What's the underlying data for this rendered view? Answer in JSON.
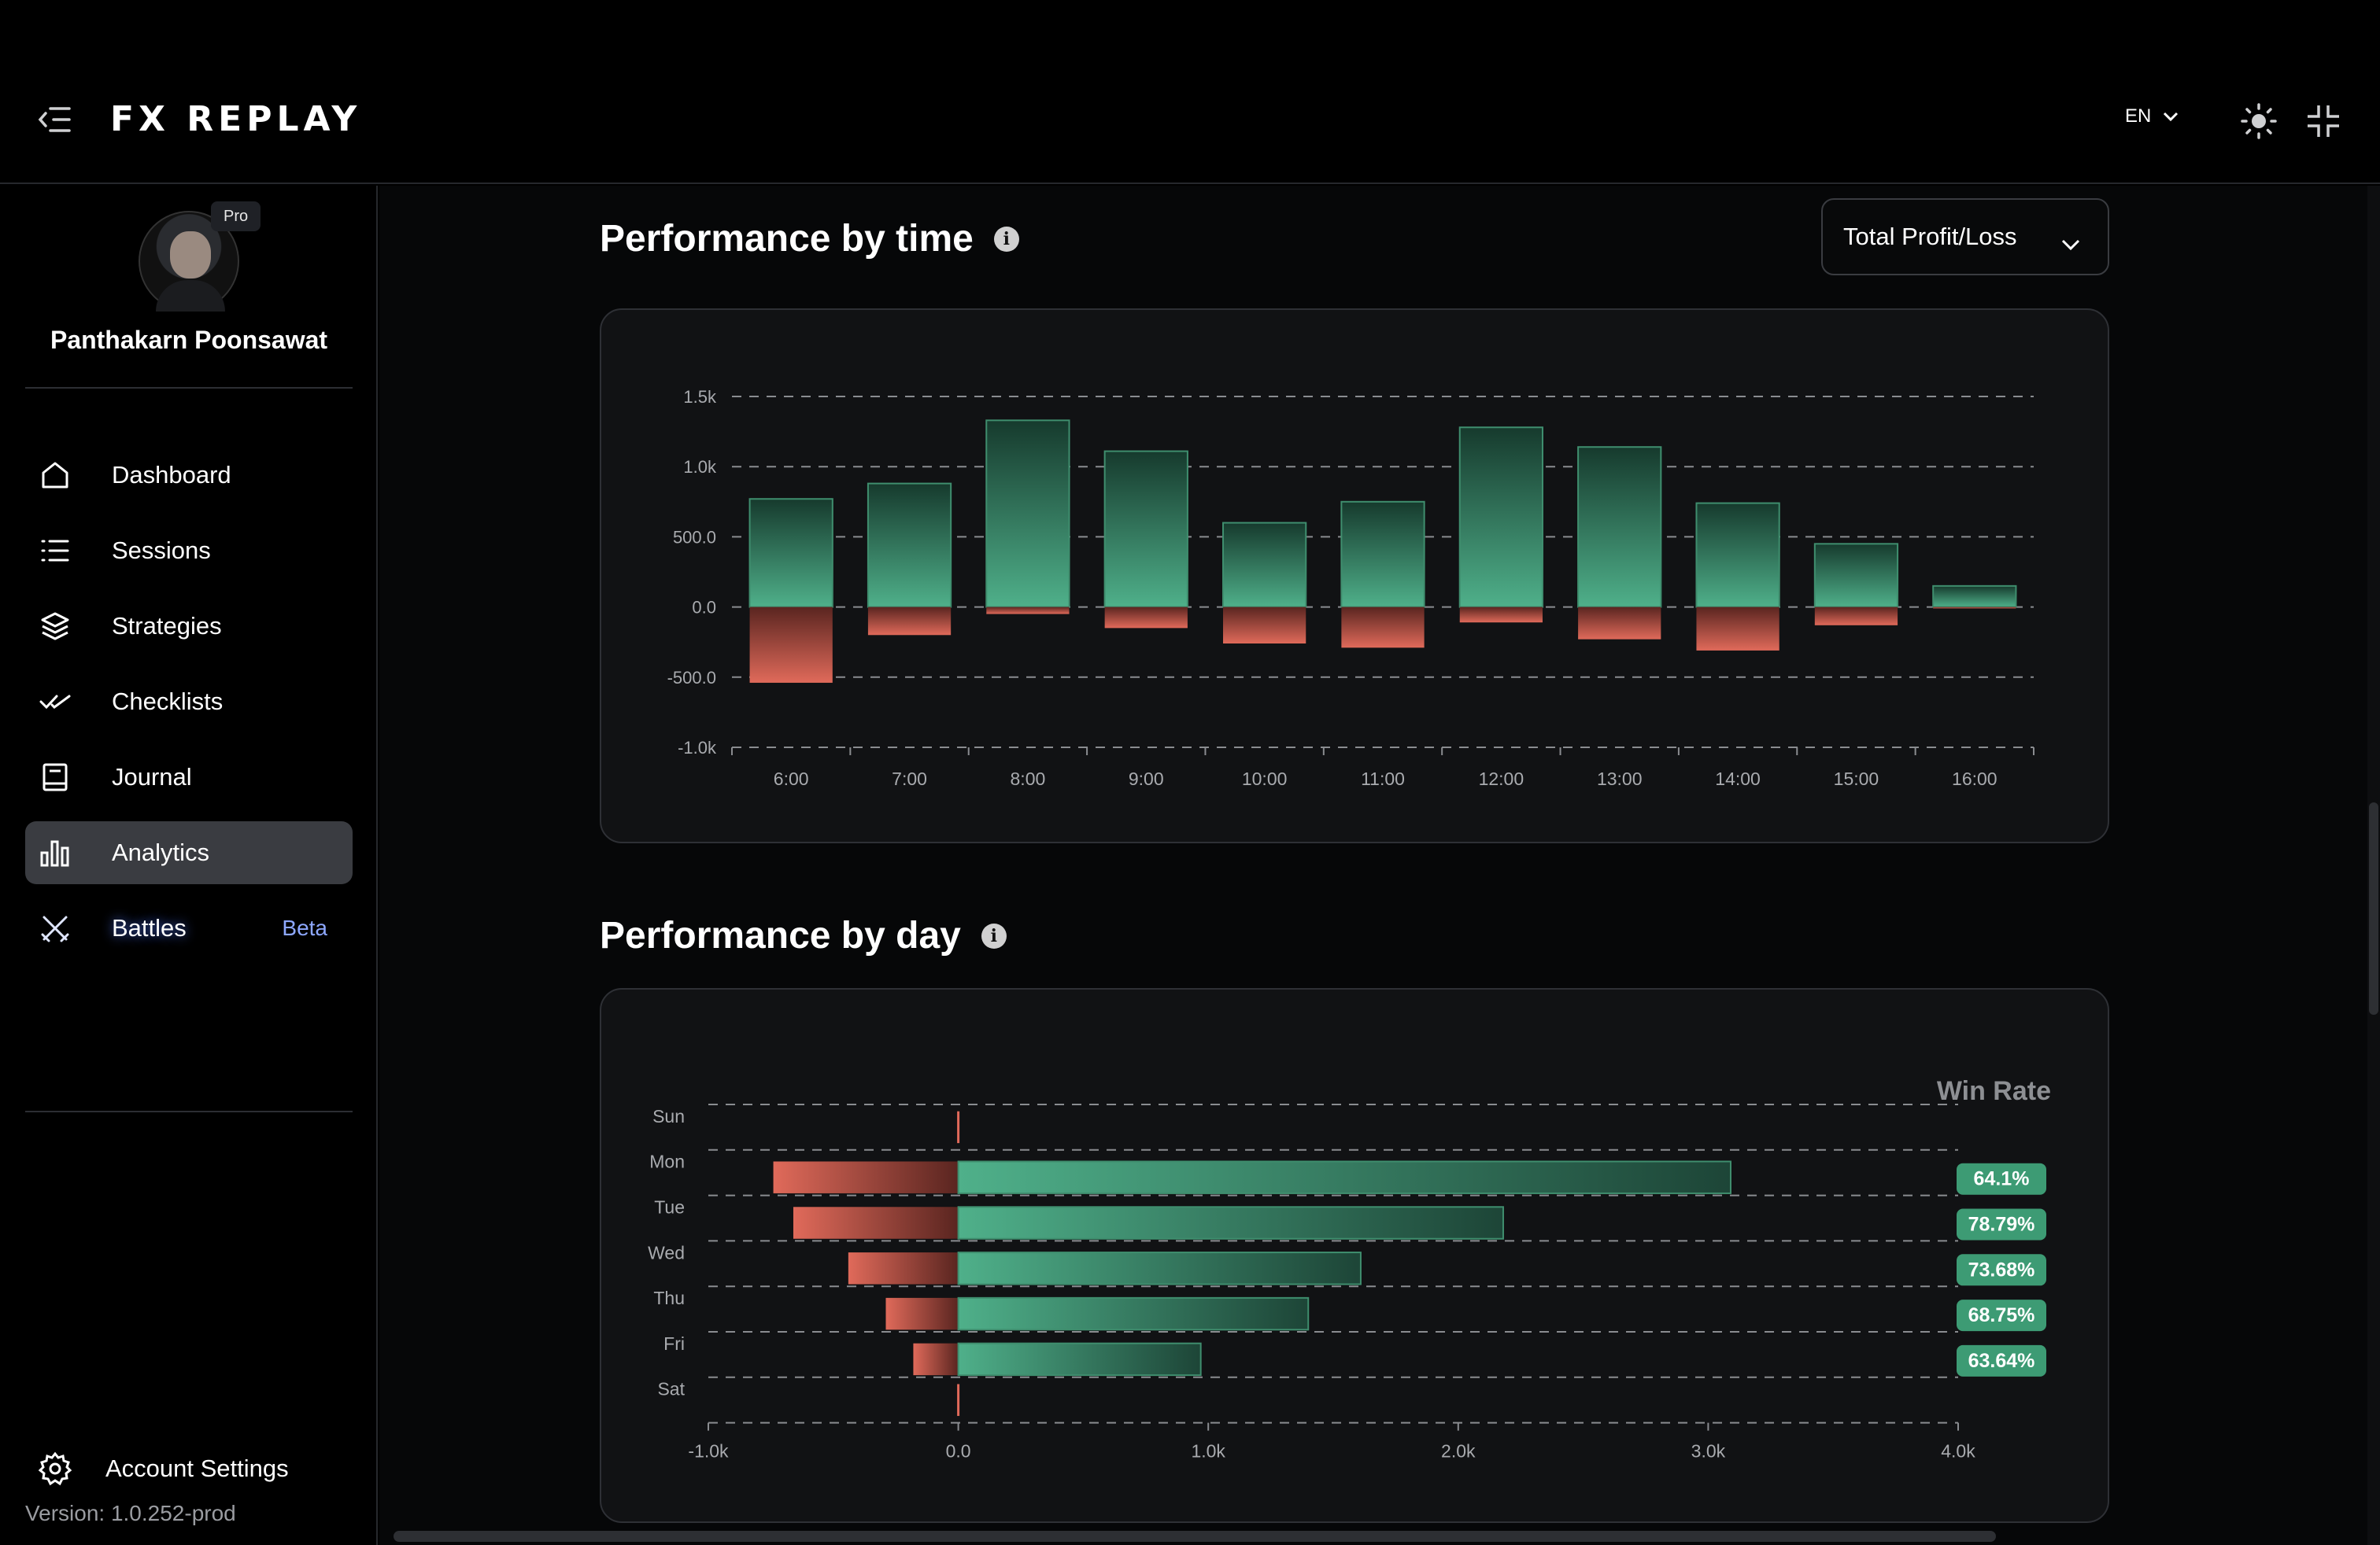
{
  "app": {
    "logo_text": "FX REPLAY",
    "language": "EN"
  },
  "user": {
    "name": "Panthakarn Poonsawat",
    "badge": "Pro"
  },
  "sidebar": {
    "items": [
      {
        "label": "Dashboard",
        "icon": "home-icon"
      },
      {
        "label": "Sessions",
        "icon": "list-icon"
      },
      {
        "label": "Strategies",
        "icon": "layers-icon"
      },
      {
        "label": "Checklists",
        "icon": "double-check-icon"
      },
      {
        "label": "Journal",
        "icon": "book-icon"
      },
      {
        "label": "Analytics",
        "icon": "bar-chart-icon",
        "active": true
      },
      {
        "label": "Battles",
        "icon": "crossed-swords-icon",
        "badge": "Beta"
      }
    ],
    "account_settings": "Account Settings",
    "version": "Version: 1.0.252-prod"
  },
  "time_section": {
    "title": "Performance by time",
    "dropdown_value": "Total Profit/Loss"
  },
  "day_section": {
    "title": "Performance by day",
    "win_rate_label": "Win Rate"
  },
  "chart_data": [
    {
      "type": "bar",
      "title": "Performance by time",
      "categories": [
        "6:00",
        "7:00",
        "8:00",
        "9:00",
        "10:00",
        "11:00",
        "12:00",
        "13:00",
        "14:00",
        "15:00",
        "16:00"
      ],
      "series": [
        {
          "values": [
            770,
            880,
            1330,
            1110,
            600,
            750,
            1280,
            1140,
            740,
            450,
            150
          ]
        },
        {
          "values": [
            -540,
            -200,
            -50,
            -150,
            -260,
            -290,
            -110,
            -230,
            -310,
            -130,
            -10
          ]
        }
      ],
      "yticks": [
        "1.5k",
        "1.0k",
        "500.0",
        "0.0",
        "-500.0",
        "-1.0k"
      ],
      "ylim": [
        -1000,
        1500
      ],
      "grid": true,
      "colors": {
        "positive": "#4fb08a",
        "negative": "#e06a5a"
      }
    },
    {
      "type": "bar",
      "orientation": "horizontal",
      "title": "Performance by day",
      "categories": [
        "Sun",
        "Mon",
        "Tue",
        "Wed",
        "Thu",
        "Fri",
        "Sat"
      ],
      "series": [
        {
          "values": [
            0,
            3090,
            2180,
            1610,
            1400,
            970,
            0
          ]
        },
        {
          "values": [
            0,
            -740,
            -660,
            -440,
            -290,
            -180,
            0
          ]
        }
      ],
      "win_rates": [
        "",
        "64.1%",
        "78.79%",
        "73.68%",
        "68.75%",
        "63.64%",
        ""
      ],
      "xticks": [
        "-1.0k",
        "0.0",
        "1.0k",
        "2.0k",
        "3.0k",
        "4.0k"
      ],
      "xlim": [
        -1000,
        4000
      ],
      "grid": true,
      "colors": {
        "positive": "#4fb08a",
        "negative": "#e06a5a",
        "badge": "#3d9b74"
      }
    }
  ]
}
